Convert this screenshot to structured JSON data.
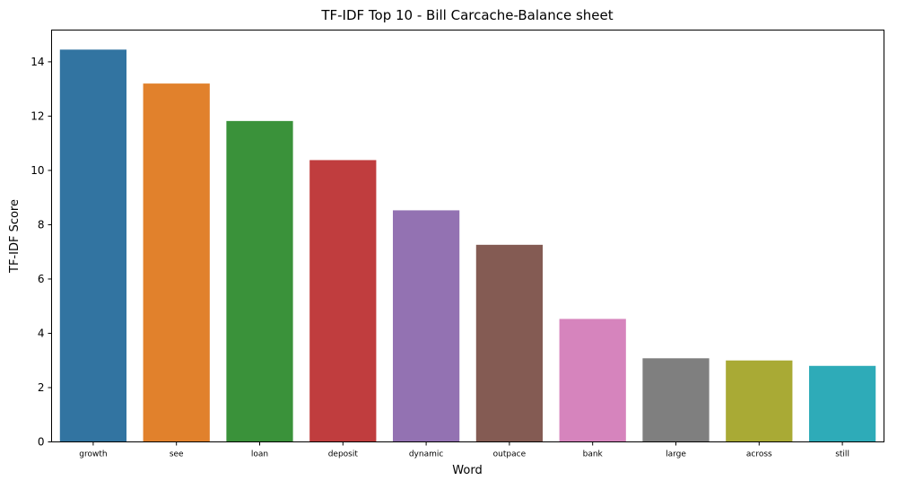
{
  "chart_data": {
    "type": "bar",
    "title": "TF-IDF Top 10 - Bill Carcache-Balance sheet",
    "xlabel": "Word",
    "ylabel": "TF-IDF Score",
    "categories": [
      "growth",
      "see",
      "loan",
      "deposit",
      "dynamic",
      "outpace",
      "bank",
      "large",
      "across",
      "still"
    ],
    "values": [
      14.45,
      13.2,
      11.82,
      10.38,
      8.53,
      7.26,
      4.53,
      3.08,
      3.0,
      2.8
    ],
    "colors": [
      "#3274a1",
      "#e1812c",
      "#3a923a",
      "#c03d3e",
      "#9372b2",
      "#845b53",
      "#d684bd",
      "#7f7f7f",
      "#a9aa35",
      "#2eabb8"
    ],
    "ylim": [
      0,
      15.17
    ],
    "yticks": [
      0,
      2,
      4,
      6,
      8,
      10,
      12,
      14
    ],
    "grid": false,
    "legend": "none"
  }
}
